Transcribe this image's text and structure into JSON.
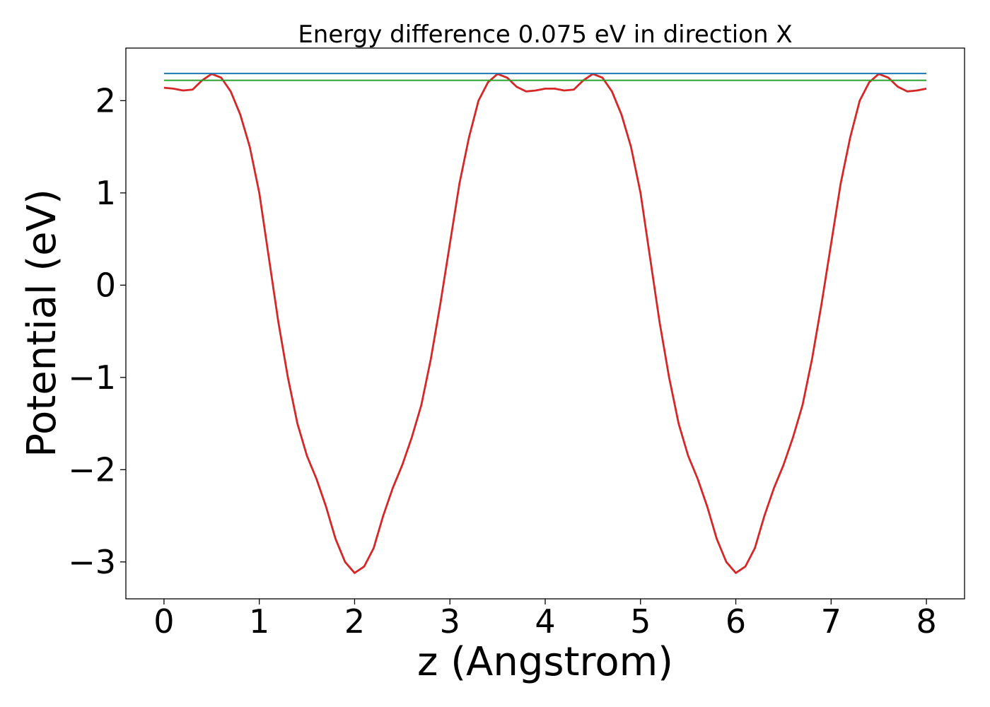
{
  "chart_data": {
    "type": "line",
    "title": "Energy difference 0.075 eV in direction X",
    "xlabel": "z (Angstrom)",
    "ylabel": "Potential (eV)",
    "xlim": [
      -0.4,
      8.4
    ],
    "ylim": [
      -3.4,
      2.57
    ],
    "xticks": [
      0,
      1,
      2,
      3,
      4,
      5,
      6,
      7,
      8
    ],
    "xtick_labels": [
      "0",
      "1",
      "2",
      "3",
      "4",
      "5",
      "6",
      "7",
      "8"
    ],
    "yticks": [
      -3,
      -2,
      -1,
      0,
      1,
      2
    ],
    "ytick_labels": [
      "−3",
      "−2",
      "−1",
      "0",
      "1",
      "2"
    ],
    "grid": false,
    "legend": "none",
    "series": [
      {
        "color": "#d62728",
        "x": [
          0,
          0.1,
          0.2,
          0.3,
          0.4,
          0.5,
          0.6,
          0.7,
          0.8,
          0.9,
          1.0,
          1.1,
          1.2,
          1.3,
          1.4,
          1.5,
          1.6,
          1.7,
          1.8,
          1.9,
          2.0,
          2.1,
          2.2,
          2.3,
          2.4,
          2.5,
          2.6,
          2.7,
          2.8,
          2.9,
          3.0,
          3.1,
          3.2,
          3.3,
          3.4,
          3.5,
          3.6,
          3.7,
          3.8,
          3.9,
          4.0,
          4.1,
          4.2,
          4.3,
          4.4,
          4.5,
          4.6,
          4.7,
          4.8,
          4.9,
          5.0,
          5.1,
          5.2,
          5.3,
          5.4,
          5.5,
          5.6,
          5.7,
          5.8,
          5.9,
          6.0,
          6.1,
          6.2,
          6.3,
          6.4,
          6.5,
          6.6,
          6.7,
          6.8,
          6.9,
          7.0,
          7.1,
          7.2,
          7.3,
          7.4,
          7.5,
          7.6,
          7.7,
          7.8,
          7.9,
          8.0
        ],
        "y": [
          2.14,
          2.13,
          2.11,
          2.12,
          2.22,
          2.29,
          2.25,
          2.1,
          1.85,
          1.5,
          1.0,
          0.3,
          -0.4,
          -1.0,
          -1.5,
          -1.85,
          -2.1,
          -2.4,
          -2.75,
          -3.0,
          -3.12,
          -3.05,
          -2.85,
          -2.5,
          -2.2,
          -1.95,
          -1.65,
          -1.3,
          -0.8,
          -0.2,
          0.45,
          1.1,
          1.6,
          2.0,
          2.2,
          2.29,
          2.25,
          2.15,
          2.1,
          2.11,
          2.13,
          2.13,
          2.11,
          2.12,
          2.22,
          2.29,
          2.25,
          2.1,
          1.85,
          1.5,
          1.0,
          0.3,
          -0.4,
          -1.0,
          -1.5,
          -1.85,
          -2.1,
          -2.4,
          -2.75,
          -3.0,
          -3.12,
          -3.05,
          -2.85,
          -2.5,
          -2.2,
          -1.95,
          -1.65,
          -1.3,
          -0.8,
          -0.2,
          0.45,
          1.1,
          1.6,
          2.0,
          2.2,
          2.29,
          2.25,
          2.15,
          2.1,
          2.11,
          2.13
        ]
      },
      {
        "color": "#1f77b4",
        "x": [
          0,
          8
        ],
        "y": [
          2.295,
          2.295
        ]
      },
      {
        "color": "#2ca02c",
        "x": [
          0,
          8
        ],
        "y": [
          2.22,
          2.22
        ]
      }
    ]
  }
}
